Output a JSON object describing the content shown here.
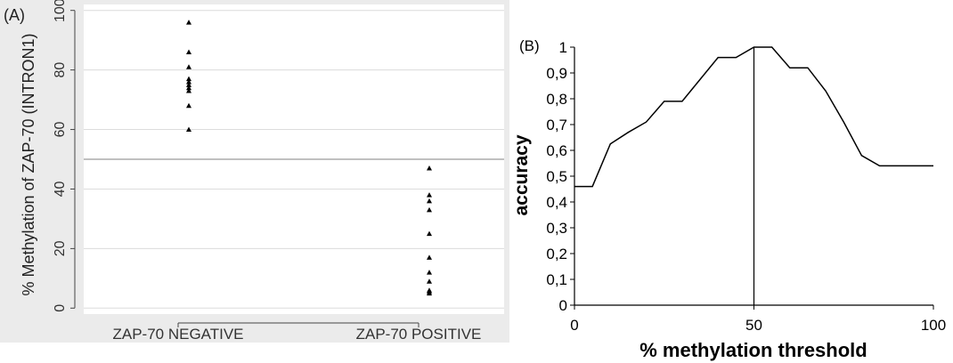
{
  "chart_data": [
    {
      "panel_label": "(A)",
      "type": "scatter",
      "ylabel": "% Methylation of ZAP-70 (INTRON1)",
      "xlabel": "",
      "categories": [
        "ZAP-70 NEGATIVE",
        "ZAP-70 POSITIVE"
      ],
      "ylim": [
        -2,
        102
      ],
      "yticks": [
        "0",
        "20",
        "40",
        "60",
        "80",
        "100"
      ],
      "ytick_values": [
        0,
        20,
        40,
        60,
        80,
        100
      ],
      "grid": true,
      "threshold_line": 50,
      "series": [
        {
          "category": "ZAP-70 NEGATIVE",
          "values": [
            96,
            86,
            81,
            77,
            76,
            75,
            74,
            73,
            68,
            60
          ]
        },
        {
          "category": "ZAP-70 POSITIVE",
          "values": [
            47,
            38,
            36,
            33,
            25,
            17,
            12,
            9,
            6,
            5.5,
            5
          ]
        }
      ],
      "colors": {
        "background": "#ebebeb",
        "plot": "#ffffff",
        "grid": "#dcdcdc",
        "marker": "#000000"
      }
    },
    {
      "panel_label": "(B)",
      "type": "line",
      "xlabel": "% methylation threshold",
      "ylabel": "accuracy",
      "xlim": [
        0,
        100
      ],
      "ylim": [
        0,
        1
      ],
      "xticks": [
        "0",
        "50",
        "100"
      ],
      "xtick_values": [
        0,
        50,
        100
      ],
      "yticks": [
        "0",
        "0,1",
        "0,2",
        "0,3",
        "0,4",
        "0,5",
        "0,6",
        "0,7",
        "0,8",
        "0,9",
        "1"
      ],
      "ytick_values": [
        0,
        0.1,
        0.2,
        0.3,
        0.4,
        0.5,
        0.6,
        0.7,
        0.8,
        0.9,
        1
      ],
      "vertical_line": 50,
      "x": [
        0,
        5,
        10,
        15,
        20,
        25,
        30,
        35,
        40,
        45,
        50,
        55,
        60,
        65,
        70,
        75,
        80,
        85,
        90,
        95,
        100
      ],
      "y": [
        0.46,
        0.46,
        0.625,
        0.67,
        0.71,
        0.79,
        0.79,
        0.875,
        0.96,
        0.96,
        1.0,
        1.0,
        0.92,
        0.92,
        0.83,
        0.71,
        0.58,
        0.54,
        0.54,
        0.54,
        0.54
      ],
      "colors": {
        "line": "#000000",
        "axis": "#000000"
      }
    }
  ]
}
